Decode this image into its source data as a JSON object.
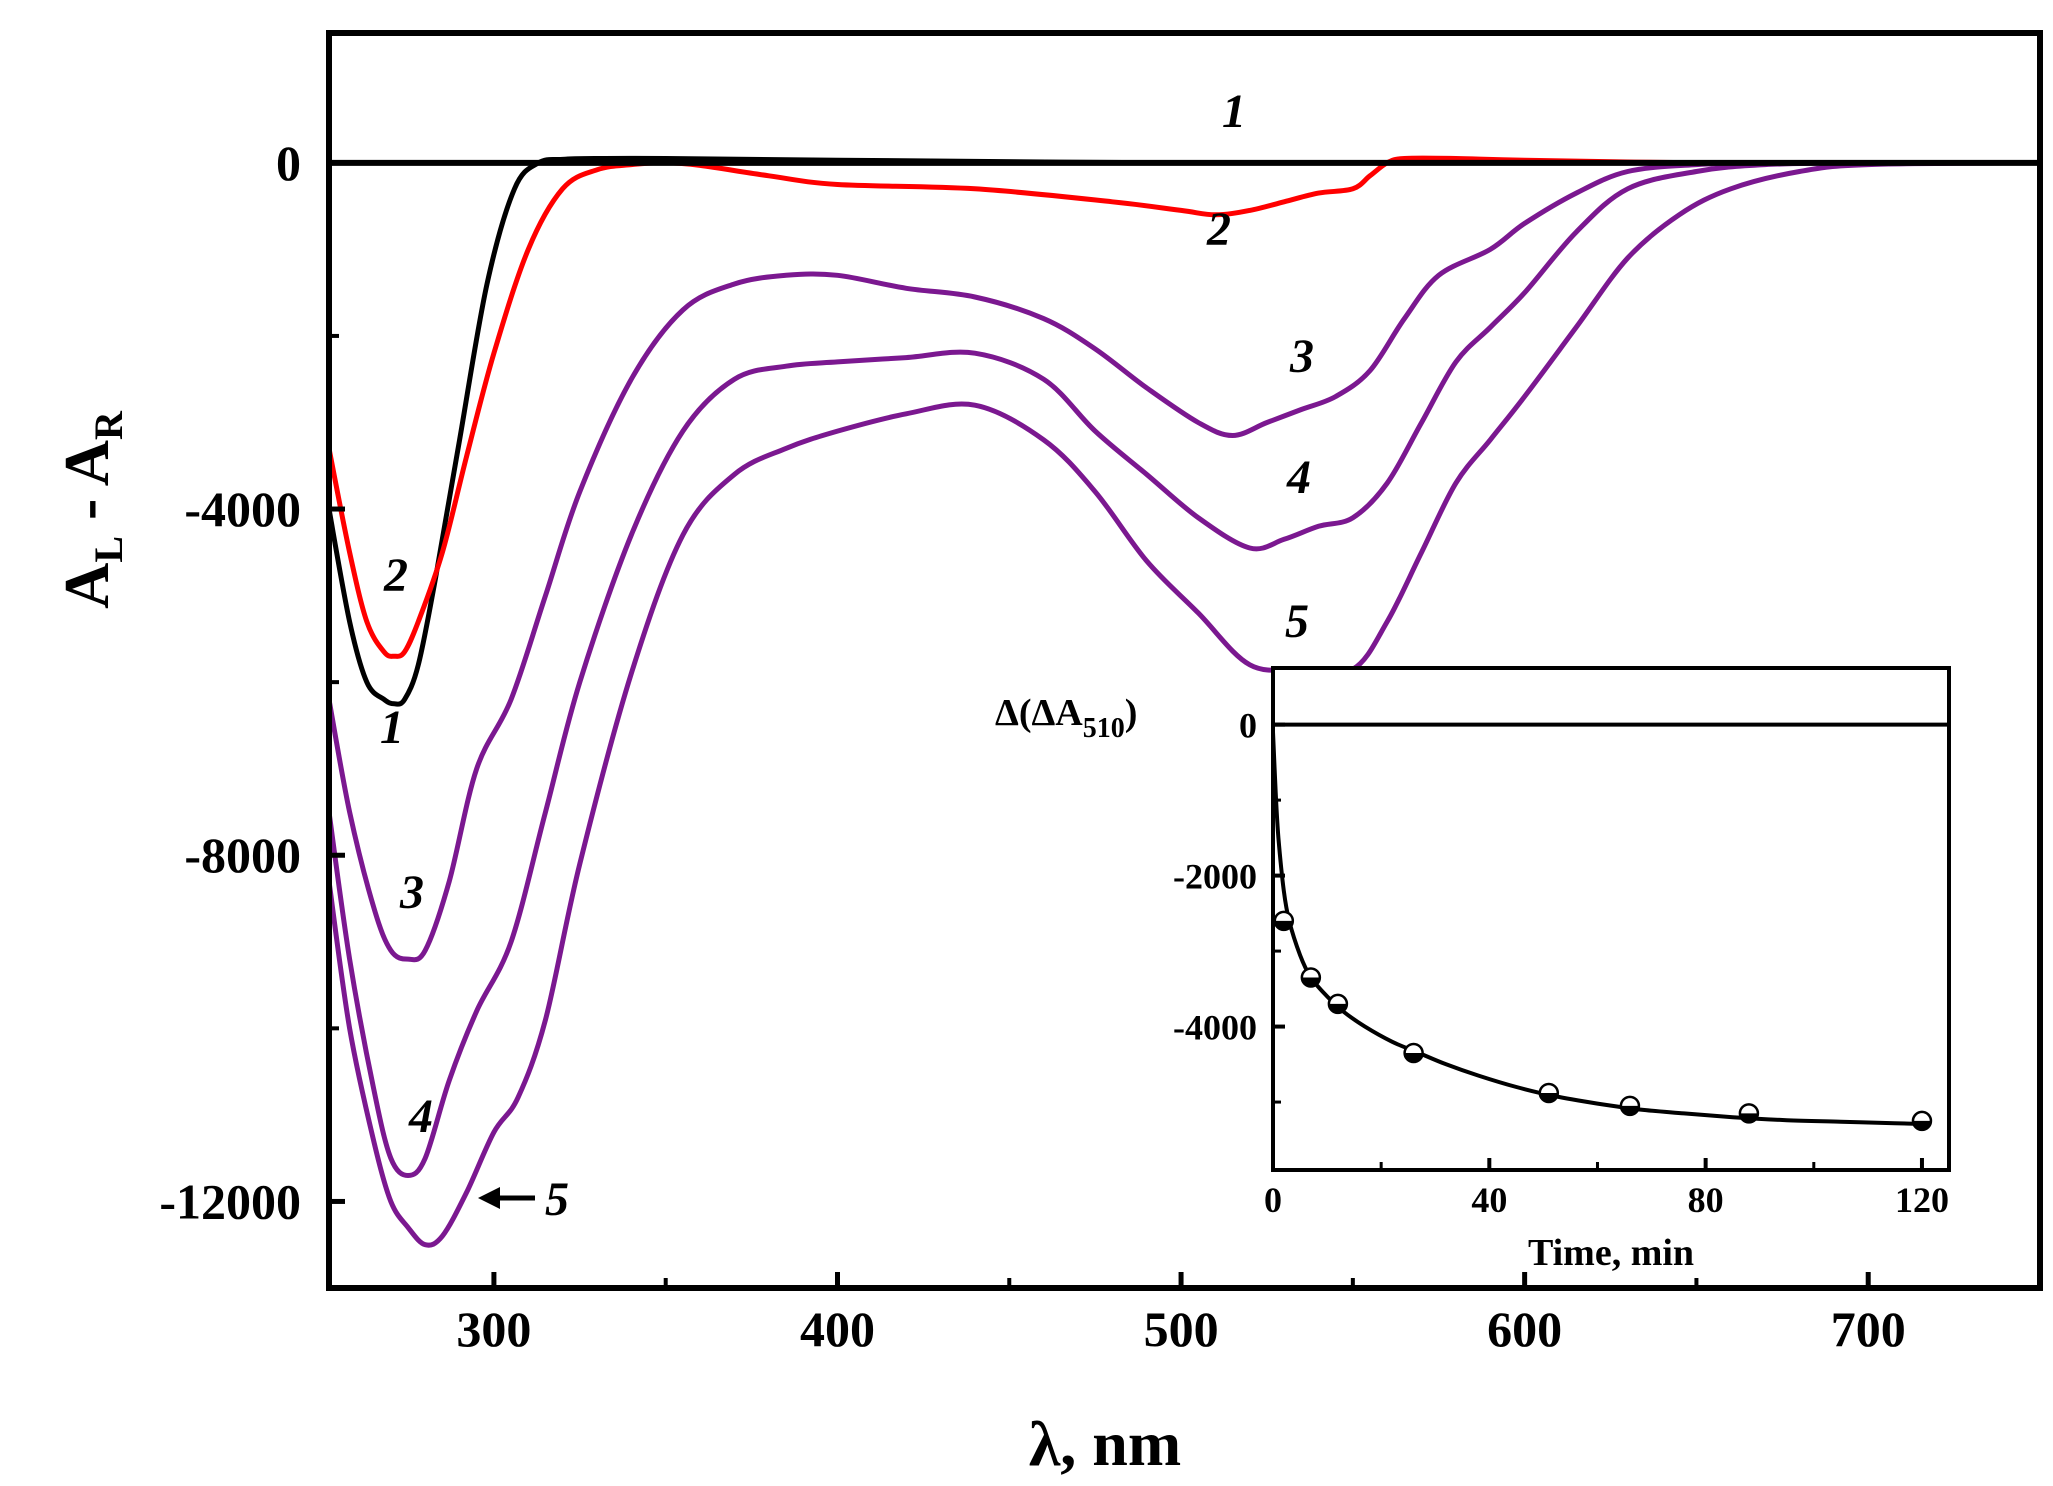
{
  "chart_data": [
    {
      "type": "line",
      "xlabel": "λ, nm",
      "ylabel_main": "A",
      "ylabel_sub_L": "L",
      "ylabel_sep": " - ",
      "ylabel_sub_R": "R",
      "xlim": [
        252,
        750
      ],
      "ylim": [
        -13000,
        1500
      ],
      "x_ticks": [
        300,
        400,
        500,
        600,
        700
      ],
      "y_ticks": [
        0,
        -4000,
        -8000,
        -12000
      ],
      "series": [
        {
          "name": "1",
          "color": "#000000",
          "x": [
            252,
            258,
            263,
            268,
            271,
            274,
            278,
            283,
            290,
            298,
            306,
            313,
            320,
            330,
            350,
            400,
            500,
            600,
            700,
            750
          ],
          "y": [
            -4000,
            -5300,
            -6000,
            -6200,
            -6250,
            -6200,
            -5800,
            -4800,
            -3200,
            -1400,
            -300,
            0,
            40,
            50,
            50,
            30,
            0,
            0,
            0,
            0
          ]
        },
        {
          "name": "2",
          "color": "#ff0000",
          "x": [
            252,
            258,
            263,
            268,
            271,
            274,
            278,
            285,
            292,
            300,
            310,
            320,
            330,
            340,
            350,
            360,
            380,
            400,
            440,
            480,
            500,
            510,
            520,
            530,
            540,
            550,
            555,
            560,
            565,
            580,
            600,
            650,
            700,
            750
          ],
          "y": [
            -3300,
            -4500,
            -5300,
            -5650,
            -5700,
            -5650,
            -5300,
            -4500,
            -3400,
            -2200,
            -1000,
            -300,
            -80,
            -20,
            0,
            -30,
            -150,
            -250,
            -300,
            -450,
            -550,
            -600,
            -550,
            -450,
            -350,
            -300,
            -150,
            0,
            50,
            50,
            30,
            0,
            0,
            0
          ]
        },
        {
          "name": "3",
          "color": "#7b1890",
          "x": [
            252,
            258,
            265,
            270,
            275,
            280,
            287,
            295,
            305,
            315,
            325,
            340,
            355,
            370,
            385,
            400,
            420,
            440,
            460,
            475,
            490,
            505,
            515,
            525,
            535,
            545,
            555,
            565,
            575,
            590,
            600,
            615,
            630,
            650,
            670,
            700,
            750
          ],
          "y": [
            -6200,
            -7500,
            -8600,
            -9100,
            -9200,
            -9100,
            -8300,
            -7000,
            -6200,
            -5000,
            -3800,
            -2500,
            -1700,
            -1400,
            -1300,
            -1300,
            -1450,
            -1550,
            -1800,
            -2150,
            -2600,
            -3000,
            -3150,
            -3000,
            -2850,
            -2700,
            -2400,
            -1800,
            -1300,
            -1000,
            -700,
            -350,
            -100,
            -20,
            0,
            0,
            0
          ]
        },
        {
          "name": "4",
          "color": "#7b1890",
          "x": [
            252,
            258,
            265,
            270,
            275,
            280,
            287,
            295,
            305,
            315,
            325,
            340,
            355,
            370,
            385,
            400,
            420,
            440,
            460,
            475,
            490,
            505,
            520,
            530,
            540,
            550,
            560,
            570,
            580,
            590,
            600,
            615,
            630,
            650,
            670,
            700,
            750
          ],
          "y": [
            -7500,
            -9200,
            -10700,
            -11500,
            -11700,
            -11500,
            -10600,
            -9800,
            -9000,
            -7500,
            -6000,
            -4300,
            -3100,
            -2500,
            -2350,
            -2300,
            -2250,
            -2200,
            -2500,
            -3100,
            -3600,
            -4100,
            -4450,
            -4350,
            -4200,
            -4100,
            -3700,
            -3000,
            -2300,
            -1900,
            -1500,
            -800,
            -300,
            -100,
            -20,
            0,
            0
          ]
        },
        {
          "name": "5",
          "color": "#7b1890",
          "x": [
            252,
            258,
            265,
            270,
            275,
            280,
            285,
            292,
            300,
            307,
            315,
            325,
            340,
            355,
            370,
            385,
            400,
            420,
            440,
            460,
            475,
            490,
            505,
            520,
            535,
            550,
            560,
            570,
            580,
            590,
            600,
            615,
            630,
            645,
            660,
            680,
            700,
            750
          ],
          "y": [
            -8300,
            -10000,
            -11300,
            -12000,
            -12300,
            -12500,
            -12400,
            -11900,
            -11200,
            -10800,
            -9900,
            -8100,
            -5900,
            -4300,
            -3600,
            -3300,
            -3100,
            -2900,
            -2800,
            -3200,
            -3800,
            -4600,
            -5200,
            -5800,
            -5850,
            -5850,
            -5300,
            -4500,
            -3700,
            -3200,
            -2700,
            -1900,
            -1100,
            -600,
            -300,
            -100,
            -20,
            0
          ]
        }
      ],
      "annotations": {
        "label_1_top": "1",
        "label_1_bottom": "1",
        "label_2_top": "2",
        "label_2_left": "2",
        "label_3_right": "3",
        "label_3_left": "3",
        "label_4_right": "4",
        "label_4_left": "4",
        "label_5_right": "5",
        "label_5_arrow": "5"
      }
    },
    {
      "type": "line",
      "inset": true,
      "ylabel_prefix": "Δ(ΔA",
      "ylabel_sub": "510",
      "ylabel_suffix": ")",
      "xlabel": "Time, min",
      "xlim": [
        0,
        125
      ],
      "ylim": [
        -5900,
        750
      ],
      "x_ticks": [
        0,
        40,
        80,
        120
      ],
      "y_ticks": [
        0,
        -2000,
        -4000
      ],
      "fit_curve": {
        "x": [
          0,
          0.5,
          1,
          2,
          3,
          5,
          7,
          10,
          13,
          17,
          22,
          27,
          32,
          38,
          45,
          52,
          60,
          68,
          76,
          85,
          95,
          105,
          115,
          120
        ],
        "y": [
          -100,
          -900,
          -1500,
          -2200,
          -2600,
          -3050,
          -3350,
          -3600,
          -3800,
          -4000,
          -4200,
          -4350,
          -4500,
          -4650,
          -4800,
          -4920,
          -5020,
          -5100,
          -5150,
          -5200,
          -5240,
          -5260,
          -5280,
          -5290
        ]
      },
      "points": {
        "x": [
          2,
          7,
          12,
          26,
          51,
          66,
          88,
          120
        ],
        "y": [
          -2600,
          -3350,
          -3700,
          -4350,
          -4880,
          -5050,
          -5150,
          -5250
        ]
      }
    }
  ]
}
